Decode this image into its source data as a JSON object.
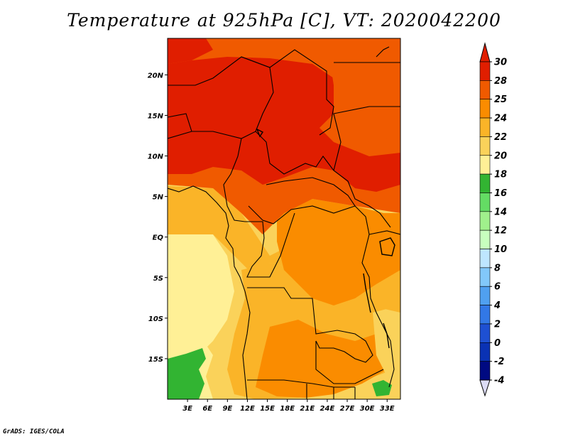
{
  "title": "Temperature at 925hPa [C], VT: 2020042200",
  "credit": "GrADS: IGES/COLA",
  "map": {
    "lon_ticks": [
      "3E",
      "6E",
      "9E",
      "12E",
      "15E",
      "18E",
      "21E",
      "24E",
      "27E",
      "30E",
      "33E"
    ],
    "lat_ticks": [
      "20N",
      "15N",
      "10N",
      "5N",
      "EQ",
      "5S",
      "10S",
      "15S"
    ],
    "lon_range": [
      0,
      35
    ],
    "lat_range": [
      -20,
      24.5
    ]
  },
  "colorbar": {
    "labels": [
      "30",
      "28",
      "25",
      "24",
      "22",
      "20",
      "18",
      "16",
      "14",
      "12",
      "10",
      "8",
      "6",
      "4",
      "2",
      "0",
      "-2",
      "-4"
    ],
    "colors": [
      "#a00000",
      "#e01e00",
      "#f05a00",
      "#fa8c00",
      "#fab428",
      "#fad25a",
      "#fff096",
      "#32b432",
      "#64dc64",
      "#a0f08c",
      "#c8ffbe",
      "#bee6ff",
      "#82c8fa",
      "#50a0f0",
      "#3278e6",
      "#1e50d2",
      "#0a32b4",
      "#000a82"
    ],
    "top_arrow_color": "#e01e00",
    "bottom_arrow_color": "#dcdcf5"
  }
}
